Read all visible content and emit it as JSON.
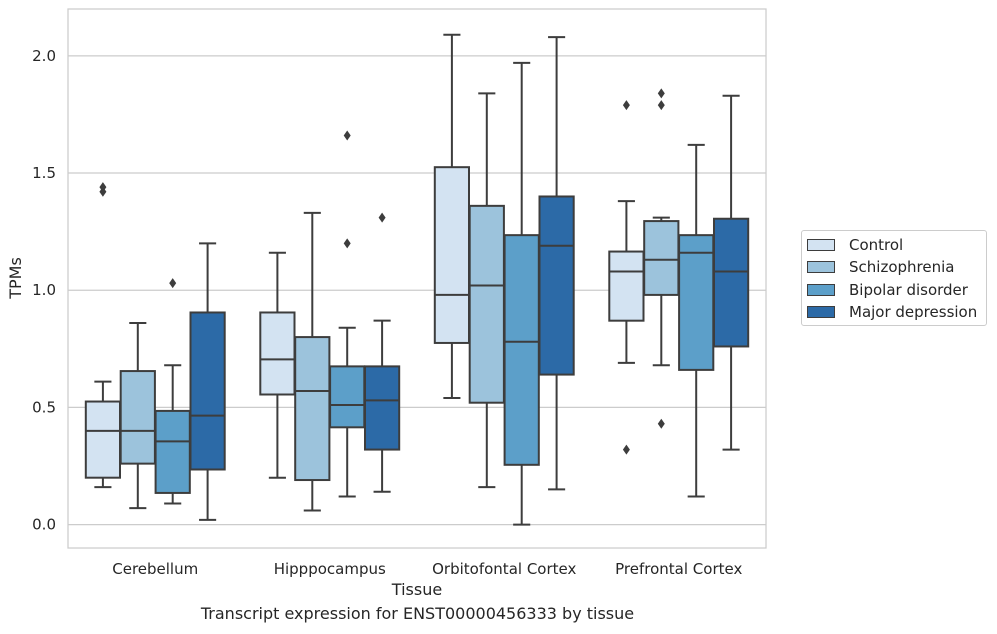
{
  "chart_data": {
    "type": "box",
    "caption": "Transcript expression for ENST00000456333 by tissue",
    "xlabel": "Tissue",
    "ylabel": "TPMs",
    "ylim": [
      -0.1,
      2.2
    ],
    "yticks": [
      "0.0",
      "0.5",
      "1.0",
      "1.5",
      "2.0"
    ],
    "grid": true,
    "legend_position": "right",
    "categories": [
      "Cerebellum",
      "Hipppocampus",
      "Orbitofontal Cortex",
      "Prefrontal Cortex"
    ],
    "series": [
      {
        "name": "Control",
        "color": "#d3e3f2",
        "boxes": [
          {
            "whisker_low": 0.16,
            "q1": 0.2,
            "median": 0.4,
            "q3": 0.525,
            "whisker_high": 0.61,
            "outliers": [
              1.42,
              1.44
            ]
          },
          {
            "whisker_low": 0.2,
            "q1": 0.555,
            "median": 0.705,
            "q3": 0.905,
            "whisker_high": 1.16,
            "outliers": []
          },
          {
            "whisker_low": 0.54,
            "q1": 0.775,
            "median": 0.98,
            "q3": 1.525,
            "whisker_high": 2.09,
            "outliers": []
          },
          {
            "whisker_low": 0.69,
            "q1": 0.87,
            "median": 1.08,
            "q3": 1.165,
            "whisker_high": 1.38,
            "outliers": [
              0.32,
              1.79
            ]
          }
        ]
      },
      {
        "name": "Schizophrenia",
        "color": "#9cc3dc",
        "boxes": [
          {
            "whisker_low": 0.07,
            "q1": 0.26,
            "median": 0.4,
            "q3": 0.655,
            "whisker_high": 0.86,
            "outliers": []
          },
          {
            "whisker_low": 0.06,
            "q1": 0.19,
            "median": 0.57,
            "q3": 0.8,
            "whisker_high": 1.33,
            "outliers": []
          },
          {
            "whisker_low": 0.16,
            "q1": 0.52,
            "median": 1.02,
            "q3": 1.36,
            "whisker_high": 1.84,
            "outliers": []
          },
          {
            "whisker_low": 0.68,
            "q1": 0.98,
            "median": 1.13,
            "q3": 1.295,
            "whisker_high": 1.31,
            "outliers": [
              0.43,
              1.79,
              1.84
            ]
          }
        ]
      },
      {
        "name": "Bipolar disorder",
        "color": "#5c9fc9",
        "boxes": [
          {
            "whisker_low": 0.09,
            "q1": 0.135,
            "median": 0.355,
            "q3": 0.485,
            "whisker_high": 0.68,
            "outliers": [
              1.03
            ]
          },
          {
            "whisker_low": 0.12,
            "q1": 0.415,
            "median": 0.51,
            "q3": 0.675,
            "whisker_high": 0.84,
            "outliers": [
              1.2,
              1.66
            ]
          },
          {
            "whisker_low": 0.0,
            "q1": 0.255,
            "median": 0.78,
            "q3": 1.235,
            "whisker_high": 1.97,
            "outliers": []
          },
          {
            "whisker_low": 0.12,
            "q1": 0.66,
            "median": 1.16,
            "q3": 1.235,
            "whisker_high": 1.62,
            "outliers": []
          }
        ]
      },
      {
        "name": "Major depression",
        "color": "#2c6aa7",
        "boxes": [
          {
            "whisker_low": 0.02,
            "q1": 0.235,
            "median": 0.465,
            "q3": 0.905,
            "whisker_high": 1.2,
            "outliers": []
          },
          {
            "whisker_low": 0.14,
            "q1": 0.32,
            "median": 0.53,
            "q3": 0.675,
            "whisker_high": 0.87,
            "outliers": [
              1.31
            ]
          },
          {
            "whisker_low": 0.15,
            "q1": 0.64,
            "median": 1.19,
            "q3": 1.4,
            "whisker_high": 2.08,
            "outliers": []
          },
          {
            "whisker_low": 0.32,
            "q1": 0.76,
            "median": 1.08,
            "q3": 1.305,
            "whisker_high": 1.83,
            "outliers": []
          }
        ]
      }
    ]
  }
}
